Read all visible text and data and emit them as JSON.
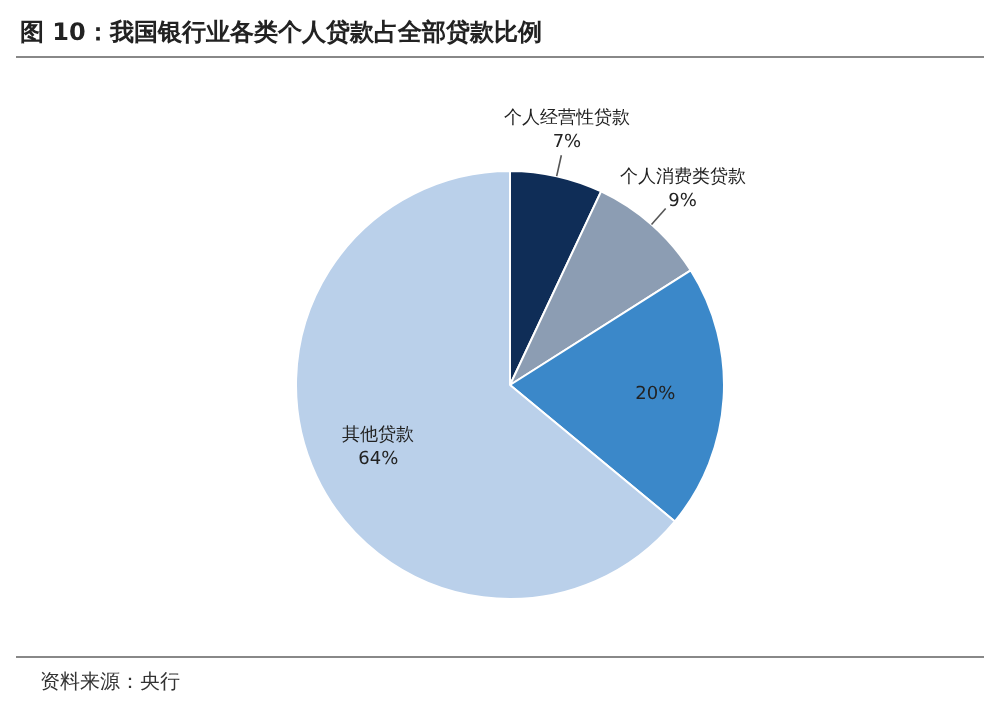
{
  "chart_data": {
    "type": "pie",
    "title": "图 10：我国银行业各类个人贷款占全部贷款比例",
    "categories": [
      "个人经营性贷款",
      "个人消费类贷款",
      null,
      "其他贷款"
    ],
    "values": [
      7,
      9,
      20,
      64
    ],
    "colors": [
      "#0f2d57",
      "#8c9db3",
      "#3b88c9",
      "#bad0ea"
    ],
    "value_labels": [
      "7%",
      "9%",
      "20%",
      "64%"
    ],
    "annotations": [
      "资料来源：央行"
    ],
    "legend": false
  }
}
